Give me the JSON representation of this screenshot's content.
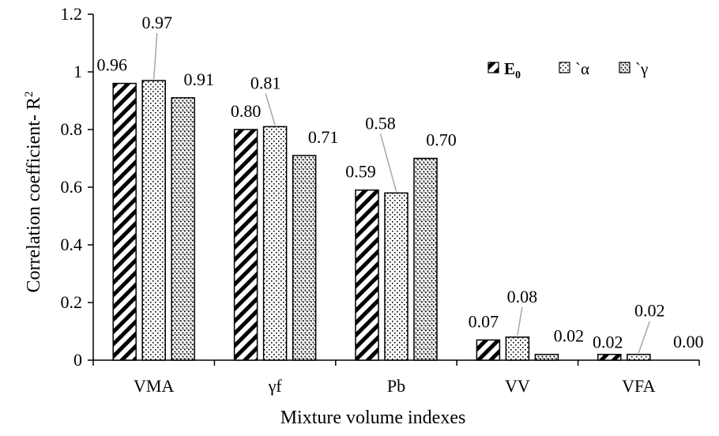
{
  "chart_data": {
    "type": "bar",
    "xlabel": "Mixture volume indexes",
    "ylabel": "Correlation coefficient- R",
    "ylabel_superscript": "2",
    "ylim": [
      0,
      1.2
    ],
    "yticks": [
      "0",
      "0.2",
      "0.4",
      "0.6",
      "0.8",
      "1",
      "1.2"
    ],
    "grid": false,
    "legend_position": "top-right",
    "categories": [
      "VMA",
      "γf",
      "Pb",
      "VV",
      "VFA"
    ],
    "series": [
      {
        "name": "E",
        "name_subscript": "0",
        "pattern": "diagonal-hatch",
        "values": [
          0.96,
          0.8,
          0.59,
          0.07,
          0.02
        ],
        "labels": [
          "0.96",
          "0.80",
          "0.59",
          "0.07",
          "0.02"
        ]
      },
      {
        "name": "`α",
        "pattern": "sparse-dots",
        "values": [
          0.97,
          0.81,
          0.58,
          0.08,
          0.02
        ],
        "labels": [
          "0.97",
          "0.81",
          "0.58",
          "0.08",
          "0.02"
        ]
      },
      {
        "name": "`γ",
        "pattern": "dense-dots",
        "values": [
          0.91,
          0.71,
          0.7,
          0.02,
          0.0
        ],
        "labels": [
          "0.91",
          "0.71",
          "0.70",
          "0.02",
          "0.00"
        ]
      }
    ],
    "colors": {
      "ink": "#000000",
      "leader": "#a6a6a6",
      "background": "#ffffff"
    }
  }
}
